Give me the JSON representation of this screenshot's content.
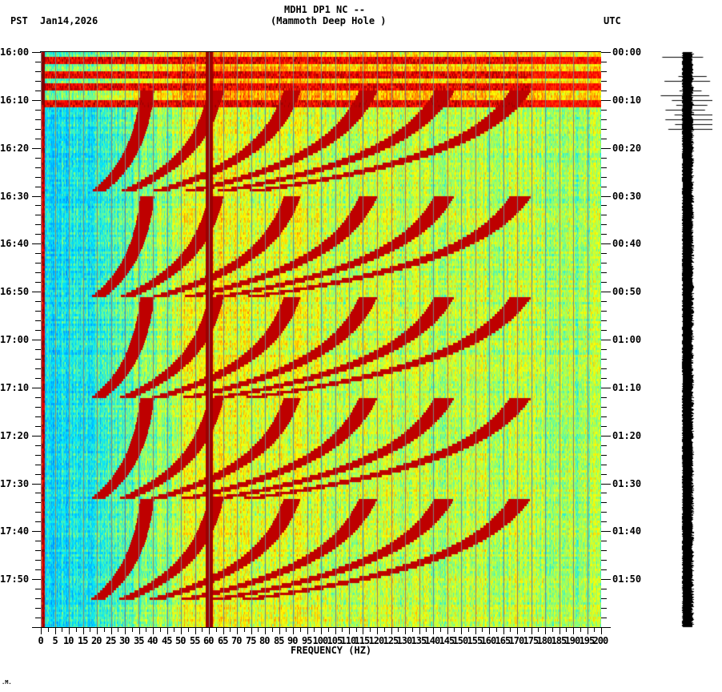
{
  "header": {
    "title_line1": "MDH1 DP1 NC --",
    "title_line2": "(Mammoth Deep Hole )",
    "left_tz": "PST",
    "date": "Jan14,2026",
    "right_tz": "UTC"
  },
  "footer": {
    "corner_mark": ".M."
  },
  "colors": {
    "background": "#ffffff",
    "grid_line": "#808080",
    "axis": "#000000",
    "colormap": [
      "#0050ff",
      "#0090ff",
      "#00e5ff",
      "#80ff80",
      "#ffff00",
      "#ff8000",
      "#ff0000",
      "#800000"
    ]
  },
  "chart_data": {
    "type": "heatmap",
    "title": "MDH1 DP1 NC -- (Mammoth Deep Hole )",
    "subtitle": "Jan14,2026",
    "xlabel": "FREQUENCY (HZ)",
    "ylabel_left": "PST",
    "ylabel_right": "UTC",
    "xlim": [
      0,
      200
    ],
    "x_ticks": [
      0,
      5,
      10,
      15,
      20,
      25,
      30,
      35,
      40,
      45,
      50,
      55,
      60,
      65,
      70,
      75,
      80,
      85,
      90,
      95,
      100,
      105,
      110,
      115,
      120,
      125,
      130,
      135,
      140,
      145,
      150,
      155,
      160,
      165,
      170,
      175,
      180,
      185,
      190,
      195,
      200
    ],
    "y_ticks_left": [
      "16:00",
      "16:10",
      "16:20",
      "16:30",
      "16:40",
      "16:50",
      "17:00",
      "17:10",
      "17:20",
      "17:30",
      "17:40",
      "17:50"
    ],
    "y_ticks_right": [
      "00:00",
      "00:10",
      "00:20",
      "00:30",
      "00:40",
      "00:50",
      "01:00",
      "01:10",
      "01:20",
      "01:30",
      "01:40",
      "01:50"
    ],
    "y_range_minutes": 120,
    "grid": {
      "vertical_every_hz": 5
    },
    "features": {
      "persistent_line_hz": 60,
      "low_freq_band_hz": [
        0,
        1
      ],
      "quiet_band_hz": [
        2,
        30
      ],
      "strong_noise_rows_minutes": [
        1.5,
        4.5,
        7,
        10.5
      ],
      "sweep_cycles_start_min": [
        8,
        30,
        51,
        72,
        93
      ],
      "sweep_cycle_length_min": 21,
      "sweep_start_hz": 20,
      "sweep_spacing_hz": [
        22,
        40,
        60,
        80,
        100,
        120
      ],
      "note": "Repeating chirp arcs rising from ~20 Hz toward higher frequency each ~21-min cycle"
    },
    "legend": []
  },
  "seismogram": {
    "label": "trace",
    "spikes_minutes": [
      1,
      5,
      6,
      8,
      9,
      10,
      11,
      12,
      13,
      14,
      15,
      16
    ]
  }
}
